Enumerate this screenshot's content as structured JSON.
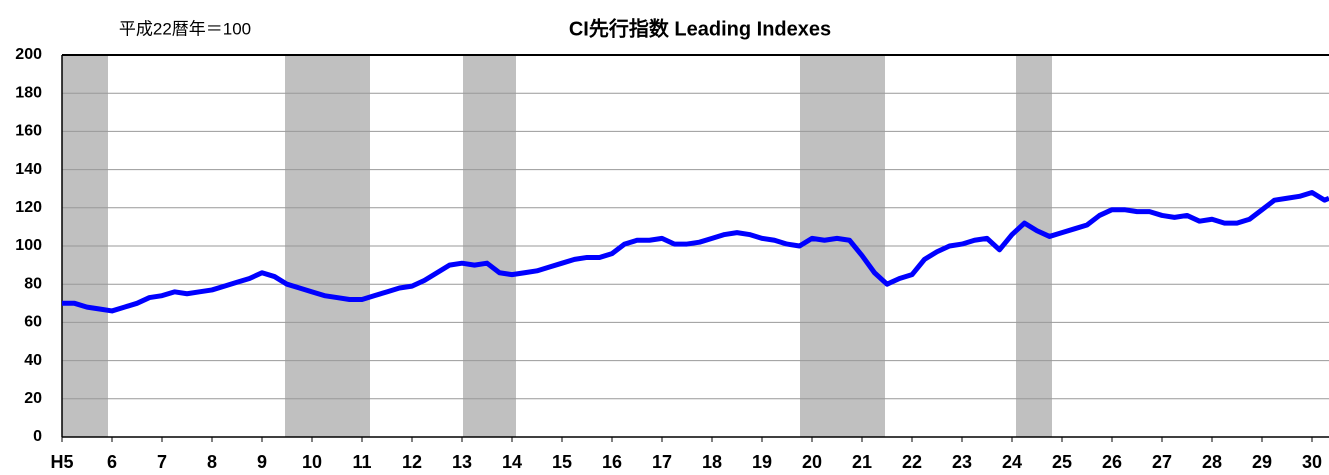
{
  "chart_data": {
    "type": "line",
    "title": "CI先行指数 Leading Indexes",
    "subtitle": "平成22暦年＝100",
    "shaded_periods": [
      [
        5,
        5.92
      ],
      [
        9.46,
        11.16
      ],
      [
        13.02,
        14.08
      ],
      [
        19.76,
        21.46
      ],
      [
        24.08,
        24.8
      ]
    ],
    "shade_color": "#c0c0c0",
    "x": [
      5.0,
      5.25,
      5.5,
      5.75,
      6.0,
      6.25,
      6.5,
      6.75,
      7.0,
      7.25,
      7.5,
      7.75,
      8.0,
      8.25,
      8.5,
      8.75,
      9.0,
      9.25,
      9.5,
      9.75,
      10.0,
      10.25,
      10.5,
      10.75,
      11.0,
      11.25,
      11.5,
      11.75,
      12.0,
      12.25,
      12.5,
      12.75,
      13.0,
      13.25,
      13.5,
      13.75,
      14.0,
      14.25,
      14.5,
      14.75,
      15.0,
      15.25,
      15.5,
      15.75,
      16.0,
      16.25,
      16.5,
      16.75,
      17.0,
      17.25,
      17.5,
      17.75,
      18.0,
      18.25,
      18.5,
      18.75,
      19.0,
      19.25,
      19.5,
      19.75,
      20.0,
      20.25,
      20.5,
      20.75,
      21.0,
      21.25,
      21.5,
      21.75,
      22.0,
      22.25,
      22.5,
      22.75,
      23.0,
      23.25,
      23.5,
      23.75,
      24.0,
      24.25,
      24.5,
      24.75,
      25.0,
      25.25,
      25.5,
      25.75,
      26.0,
      26.25,
      26.5,
      26.75,
      27.0,
      27.25,
      27.5,
      27.75,
      28.0,
      28.25,
      28.5,
      28.75,
      29.0,
      29.25,
      29.5,
      29.75,
      30.0,
      30.25,
      30.34
    ],
    "series": [
      {
        "color": "#0000ff",
        "values": [
          70,
          70,
          68,
          67,
          66,
          68,
          70,
          73,
          74,
          76,
          75,
          76,
          77,
          79,
          81,
          83,
          86,
          84,
          80,
          78,
          76,
          74,
          73,
          72,
          72,
          74,
          76,
          78,
          79,
          82,
          86,
          90,
          91,
          90,
          91,
          86,
          85,
          86,
          87,
          89,
          91,
          93,
          94,
          94,
          96,
          101,
          103,
          103,
          104,
          101,
          101,
          102,
          104,
          106,
          107,
          106,
          104,
          103,
          101,
          100,
          104,
          103,
          104,
          103,
          95,
          86,
          80,
          83,
          85,
          93,
          97,
          100,
          101,
          103,
          104,
          98,
          106,
          112,
          108,
          105,
          107,
          109,
          111,
          116,
          119,
          119,
          118,
          118,
          116,
          115,
          116,
          113,
          114,
          112,
          112,
          114,
          119,
          124,
          125,
          126,
          128,
          124,
          125
        ]
      }
    ],
    "xlim": [
      5,
      30.34
    ],
    "xticks": [
      {
        "value": 5,
        "label": "H5"
      },
      6,
      7,
      8,
      9,
      10,
      11,
      12,
      13,
      14,
      15,
      16,
      17,
      18,
      19,
      20,
      21,
      22,
      23,
      24,
      25,
      26,
      27,
      28,
      29,
      30
    ],
    "ylim": [
      0,
      200
    ],
    "yticks": [
      0,
      20,
      40,
      60,
      80,
      100,
      120,
      140,
      160,
      180,
      200
    ],
    "grid": true
  }
}
